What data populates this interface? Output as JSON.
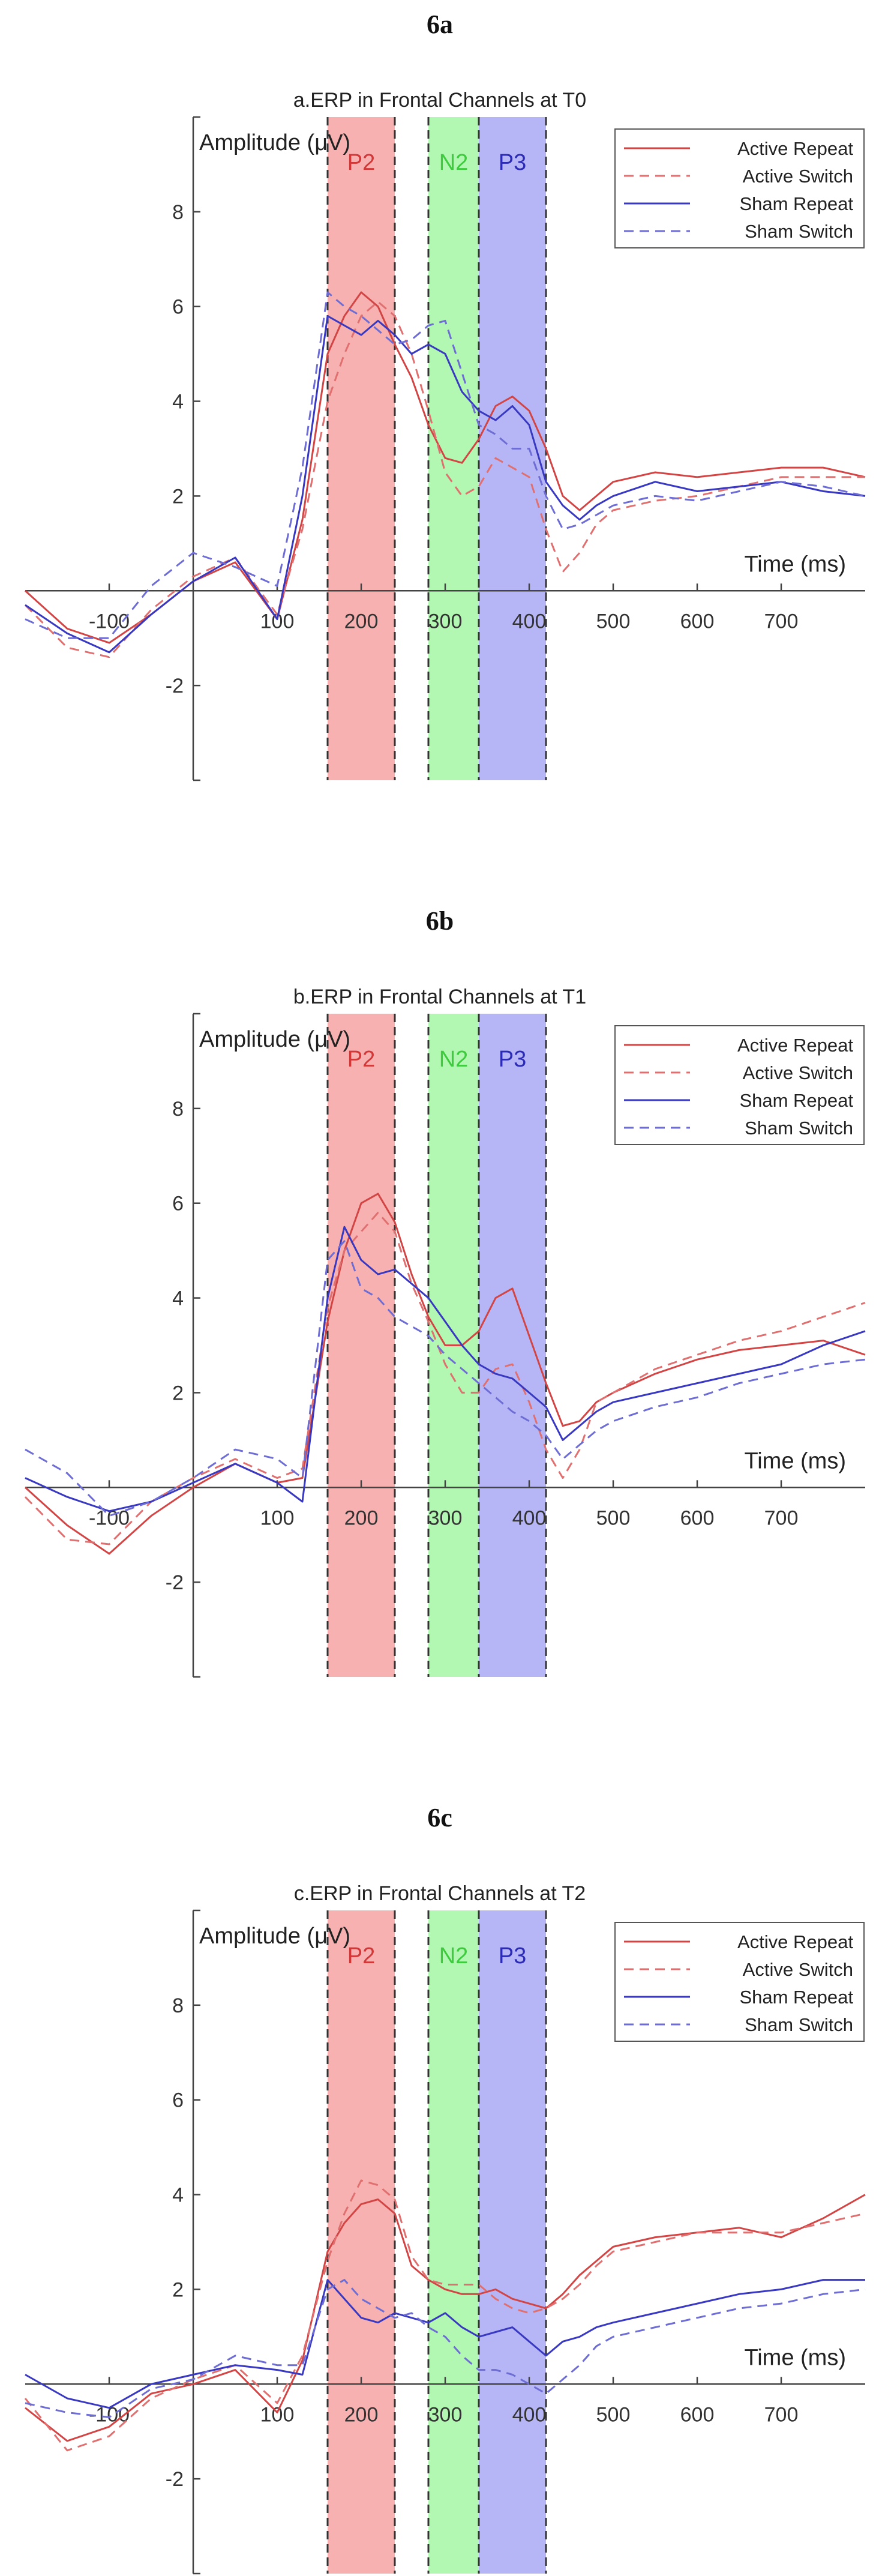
{
  "chart_data": [
    {
      "type": "line",
      "figure_label": "6a",
      "title": "a.ERP in Frontal Channels at T0",
      "xlabel": "Time (ms)",
      "ylabel": "Amplitude (μV)",
      "xlim": [
        -200,
        800
      ],
      "ylim": [
        -4,
        10
      ],
      "x_ticks": [
        -100,
        100,
        200,
        300,
        400,
        500,
        600,
        700
      ],
      "y_ticks": [
        -2,
        2,
        4,
        6,
        8
      ],
      "grid": false,
      "legend_position": "top-right",
      "bands": [
        {
          "label": "P2",
          "x0": 160,
          "x1": 240,
          "color": "#f7b1b1",
          "text_color": "#d23838"
        },
        {
          "label": "N2",
          "x0": 280,
          "x1": 340,
          "color": "#b2f7b2",
          "text_color": "#3ecb3e"
        },
        {
          "label": "P3",
          "x0": 340,
          "x1": 420,
          "color": "#b6b6f7",
          "text_color": "#2b2bb4"
        }
      ],
      "x": [
        -200,
        -150,
        -100,
        -50,
        0,
        50,
        100,
        130,
        160,
        180,
        200,
        220,
        240,
        260,
        280,
        300,
        320,
        340,
        360,
        380,
        400,
        420,
        440,
        460,
        480,
        500,
        550,
        600,
        650,
        700,
        750,
        800
      ],
      "series": [
        {
          "name": "Active Repeat",
          "color": "#d24545",
          "dash": "solid",
          "values": [
            0,
            -0.8,
            -1.1,
            -0.5,
            0.2,
            0.6,
            -0.6,
            1.5,
            5.0,
            5.8,
            6.3,
            6.0,
            5.2,
            4.5,
            3.5,
            2.8,
            2.7,
            3.2,
            3.9,
            4.1,
            3.8,
            3.0,
            2.0,
            1.7,
            2.0,
            2.3,
            2.5,
            2.4,
            2.5,
            2.6,
            2.6,
            2.4
          ]
        },
        {
          "name": "Active Switch",
          "color": "#e07070",
          "dash": "dashed",
          "values": [
            -0.3,
            -1.2,
            -1.4,
            -0.4,
            0.3,
            0.7,
            -0.5,
            1.3,
            4.0,
            5.0,
            5.8,
            6.1,
            5.8,
            5.0,
            3.8,
            2.5,
            2.0,
            2.2,
            2.8,
            2.6,
            2.4,
            1.3,
            0.4,
            0.8,
            1.4,
            1.7,
            1.9,
            2.0,
            2.2,
            2.4,
            2.4,
            2.4
          ]
        },
        {
          "name": "Sham Repeat",
          "color": "#3838c0",
          "dash": "solid",
          "values": [
            -0.3,
            -0.9,
            -1.3,
            -0.5,
            0.2,
            0.7,
            -0.6,
            2.0,
            5.8,
            5.6,
            5.4,
            5.7,
            5.4,
            5.0,
            5.2,
            5.0,
            4.2,
            3.8,
            3.6,
            3.9,
            3.5,
            2.3,
            1.8,
            1.5,
            1.8,
            2.0,
            2.3,
            2.1,
            2.2,
            2.3,
            2.1,
            2.0
          ]
        },
        {
          "name": "Sham Switch",
          "color": "#6d6dd4",
          "dash": "dashed",
          "values": [
            -0.6,
            -1.0,
            -1.0,
            0.1,
            0.8,
            0.5,
            0.1,
            2.6,
            6.3,
            6.0,
            5.8,
            5.5,
            5.2,
            5.3,
            5.6,
            5.7,
            4.6,
            3.5,
            3.3,
            3.0,
            3.0,
            2.0,
            1.3,
            1.4,
            1.6,
            1.8,
            2.0,
            1.9,
            2.1,
            2.3,
            2.2,
            2.0
          ]
        }
      ]
    },
    {
      "type": "line",
      "figure_label": "6b",
      "title": "b.ERP in Frontal Channels at T1",
      "xlabel": "Time (ms)",
      "ylabel": "Amplitude (μV)",
      "xlim": [
        -200,
        800
      ],
      "ylim": [
        -4,
        10
      ],
      "x_ticks": [
        -100,
        100,
        200,
        300,
        400,
        500,
        600,
        700
      ],
      "y_ticks": [
        -2,
        2,
        4,
        6,
        8
      ],
      "grid": false,
      "legend_position": "top-right",
      "bands": [
        {
          "label": "P2",
          "x0": 160,
          "x1": 240,
          "color": "#f7b1b1",
          "text_color": "#d23838"
        },
        {
          "label": "N2",
          "x0": 280,
          "x1": 340,
          "color": "#b2f7b2",
          "text_color": "#3ecb3e"
        },
        {
          "label": "P3",
          "x0": 340,
          "x1": 420,
          "color": "#b6b6f7",
          "text_color": "#2b2bb4"
        }
      ],
      "x": [
        -200,
        -150,
        -100,
        -50,
        0,
        50,
        100,
        130,
        160,
        180,
        200,
        220,
        240,
        260,
        280,
        300,
        320,
        340,
        360,
        380,
        400,
        420,
        440,
        460,
        480,
        500,
        550,
        600,
        650,
        700,
        750,
        800
      ],
      "series": [
        {
          "name": "Active Repeat",
          "color": "#d24545",
          "dash": "solid",
          "values": [
            0,
            -0.8,
            -1.4,
            -0.6,
            0,
            0.5,
            0.1,
            0.2,
            3.5,
            5.0,
            6.0,
            6.2,
            5.6,
            4.5,
            3.6,
            3.0,
            3.0,
            3.3,
            4.0,
            4.2,
            3.2,
            2.2,
            1.3,
            1.4,
            1.8,
            2.0,
            2.4,
            2.7,
            2.9,
            3.0,
            3.1,
            2.8
          ]
        },
        {
          "name": "Active Switch",
          "color": "#e07070",
          "dash": "dashed",
          "values": [
            -0.2,
            -1.1,
            -1.2,
            -0.3,
            0.2,
            0.6,
            0.2,
            0.4,
            3.8,
            5.0,
            5.4,
            5.8,
            5.4,
            4.3,
            3.5,
            2.6,
            2.0,
            2.0,
            2.5,
            2.6,
            1.8,
            0.8,
            0.2,
            0.8,
            1.8,
            2.0,
            2.5,
            2.8,
            3.1,
            3.3,
            3.6,
            3.9
          ]
        },
        {
          "name": "Sham Repeat",
          "color": "#3838c0",
          "dash": "solid",
          "values": [
            0.2,
            -0.2,
            -0.5,
            -0.3,
            0.1,
            0.5,
            0.1,
            -0.3,
            4.0,
            5.5,
            4.8,
            4.5,
            4.6,
            4.3,
            4.0,
            3.5,
            3.0,
            2.6,
            2.4,
            2.3,
            2.0,
            1.7,
            1.0,
            1.3,
            1.6,
            1.8,
            2.0,
            2.2,
            2.4,
            2.6,
            3.0,
            3.3
          ]
        },
        {
          "name": "Sham Switch",
          "color": "#6d6dd4",
          "dash": "dashed",
          "values": [
            0.8,
            0.3,
            -0.6,
            -0.3,
            0.2,
            0.8,
            0.6,
            0.2,
            4.8,
            5.2,
            4.2,
            4.0,
            3.6,
            3.4,
            3.2,
            2.8,
            2.5,
            2.2,
            1.9,
            1.6,
            1.4,
            1.1,
            0.6,
            0.9,
            1.2,
            1.4,
            1.7,
            1.9,
            2.2,
            2.4,
            2.6,
            2.7
          ]
        }
      ]
    },
    {
      "type": "line",
      "figure_label": "6c",
      "title": "c.ERP in Frontal Channels at T2",
      "xlabel": "Time (ms)",
      "ylabel": "Amplitude (μV)",
      "xlim": [
        -200,
        800
      ],
      "ylim": [
        -4,
        10
      ],
      "x_ticks": [
        -100,
        100,
        200,
        300,
        400,
        500,
        600,
        700
      ],
      "y_ticks": [
        -2,
        2,
        4,
        6,
        8
      ],
      "grid": false,
      "legend_position": "top-right",
      "bands": [
        {
          "label": "P2",
          "x0": 160,
          "x1": 240,
          "color": "#f7b1b1",
          "text_color": "#d23838"
        },
        {
          "label": "N2",
          "x0": 280,
          "x1": 340,
          "color": "#b2f7b2",
          "text_color": "#3ecb3e"
        },
        {
          "label": "P3",
          "x0": 340,
          "x1": 420,
          "color": "#b6b6f7",
          "text_color": "#2b2bb4"
        }
      ],
      "x": [
        -200,
        -150,
        -100,
        -50,
        0,
        50,
        100,
        130,
        160,
        180,
        200,
        220,
        240,
        260,
        280,
        300,
        320,
        340,
        360,
        380,
        400,
        420,
        440,
        460,
        480,
        500,
        550,
        600,
        650,
        700,
        750,
        800
      ],
      "series": [
        {
          "name": "Active Repeat",
          "color": "#d24545",
          "dash": "solid",
          "values": [
            -0.5,
            -1.2,
            -0.9,
            -0.2,
            0,
            0.3,
            -0.6,
            0.5,
            2.8,
            3.4,
            3.8,
            3.9,
            3.6,
            2.5,
            2.2,
            2.0,
            1.9,
            1.9,
            2.0,
            1.8,
            1.7,
            1.6,
            1.9,
            2.3,
            2.6,
            2.9,
            3.1,
            3.2,
            3.3,
            3.1,
            3.5,
            4.0
          ]
        },
        {
          "name": "Active Switch",
          "color": "#e07070",
          "dash": "dashed",
          "values": [
            -0.3,
            -1.4,
            -1.1,
            -0.3,
            0.1,
            0.4,
            -0.4,
            0.6,
            2.6,
            3.6,
            4.3,
            4.2,
            3.9,
            2.7,
            2.2,
            2.1,
            2.1,
            2.1,
            1.8,
            1.6,
            1.5,
            1.6,
            1.8,
            2.1,
            2.5,
            2.8,
            3.0,
            3.2,
            3.2,
            3.2,
            3.4,
            3.6
          ]
        },
        {
          "name": "Sham Repeat",
          "color": "#3838c0",
          "dash": "solid",
          "values": [
            0.2,
            -0.3,
            -0.5,
            0,
            0.2,
            0.4,
            0.3,
            0.2,
            2.2,
            1.8,
            1.4,
            1.3,
            1.5,
            1.4,
            1.3,
            1.5,
            1.2,
            1.0,
            1.1,
            1.2,
            0.9,
            0.6,
            0.9,
            1.0,
            1.2,
            1.3,
            1.5,
            1.7,
            1.9,
            2.0,
            2.2,
            2.2
          ]
        },
        {
          "name": "Sham Switch",
          "color": "#6d6dd4",
          "dash": "dashed",
          "values": [
            -0.4,
            -0.6,
            -0.7,
            -0.1,
            0.1,
            0.6,
            0.4,
            0.4,
            2.0,
            2.2,
            1.8,
            1.6,
            1.4,
            1.5,
            1.2,
            1.0,
            0.6,
            0.3,
            0.3,
            0.2,
            0,
            -0.2,
            0.1,
            0.4,
            0.8,
            1.0,
            1.2,
            1.4,
            1.6,
            1.7,
            1.9,
            2.0
          ]
        }
      ]
    }
  ]
}
